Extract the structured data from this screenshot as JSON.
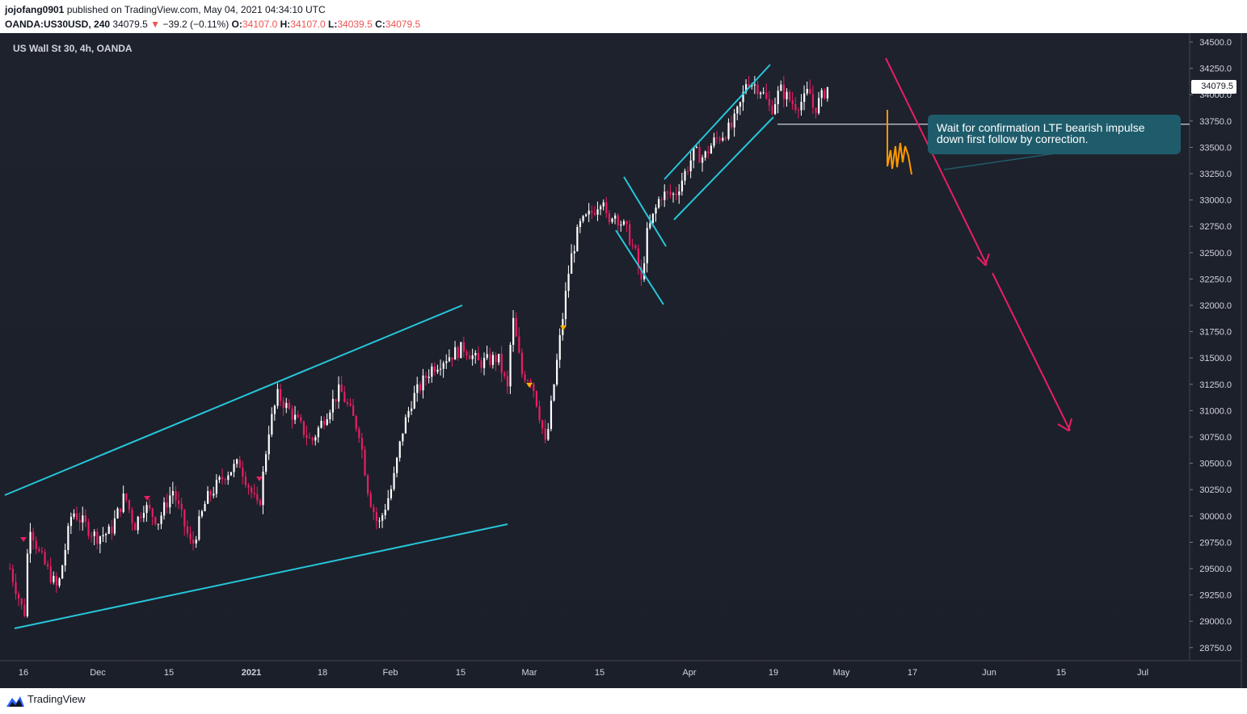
{
  "header": {
    "username": "jojofang0901",
    "published": " published on TradingView.com, May 04, 2021 04:34:10 UTC",
    "symbol": "OANDA:US30USD, 240",
    "last": "34079.5",
    "change": "−39.2 (−0.11%)",
    "o_label": "O:",
    "o_value": "34107.0",
    "h_label": "H:",
    "h_value": "34107.0",
    "l_label": "L:",
    "l_value": "34039.5",
    "c_label": "C:",
    "c_value": "34079.5",
    "down_glyph": "▼"
  },
  "chart_title": "US Wall St 30, 4h, OANDA",
  "price_label": "34079.5",
  "annotation": "Wait for confirmation LTF bearish impulse down first follow by correction.",
  "footer": {
    "brand": "TradingView"
  },
  "colors": {
    "background": "#1e222d",
    "up_candle": "#ffffff",
    "down_candle": "#e91e63",
    "trendline": "#26c6da",
    "projection": "#e91e63",
    "sketch": "#ff9800",
    "callout": "#1f5c6b"
  },
  "chart_data": {
    "type": "candlestick",
    "symbol": "US30USD",
    "timeframe": "4h",
    "y_ticks": [
      34500,
      34250,
      34000,
      33750,
      33500,
      33250,
      33000,
      32750,
      32500,
      32250,
      32000,
      31750,
      31500,
      31250,
      31000,
      30750,
      30500,
      30250,
      30000,
      29750,
      29500,
      29250,
      29000,
      28750
    ],
    "y_tick_labels": [
      "34500.0",
      "34250.0",
      "34000.0",
      "33750.0",
      "33500.0",
      "33250.0",
      "33000.0",
      "32750.0",
      "32500.0",
      "32250.0",
      "32000.0",
      "31750.0",
      "31500.0",
      "31250.0",
      "31000.0",
      "30750.0",
      "30500.0",
      "30250.0",
      "30000.0",
      "29750.0",
      "29500.0",
      "29250.0",
      "29000.0",
      "28750.0"
    ],
    "x_tick_labels": [
      "16",
      "Dec",
      "15",
      "2021",
      "18",
      "Feb",
      "15",
      "Mar",
      "15",
      "Apr",
      "19",
      "May",
      "17",
      "Jun",
      "15",
      "Jul"
    ],
    "x_tick_bold": [
      "2021"
    ],
    "last_price": 34079.5,
    "path_points": [
      [
        "2020-11-13",
        29500
      ],
      [
        "2020-11-16",
        29050
      ],
      [
        "2020-11-17",
        29950
      ],
      [
        "2020-11-19",
        29650
      ],
      [
        "2020-11-23",
        29300
      ],
      [
        "2020-11-26",
        30050
      ],
      [
        "2020-12-01",
        29800
      ],
      [
        "2020-12-04",
        29850
      ],
      [
        "2020-12-07",
        30200
      ],
      [
        "2020-12-09",
        29900
      ],
      [
        "2020-12-11",
        30100
      ],
      [
        "2020-12-14",
        29950
      ],
      [
        "2020-12-17",
        30250
      ],
      [
        "2020-12-21",
        29700
      ],
      [
        "2020-12-24",
        30150
      ],
      [
        "2020-12-28",
        30400
      ],
      [
        "2020-12-31",
        30500
      ],
      [
        "2021-01-04",
        30050
      ],
      [
        "2021-01-06",
        30800
      ],
      [
        "2021-01-08",
        31150
      ],
      [
        "2021-01-12",
        30900
      ],
      [
        "2021-01-15",
        30700
      ],
      [
        "2021-01-19",
        31050
      ],
      [
        "2021-01-21",
        31200
      ],
      [
        "2021-01-25",
        30800
      ],
      [
        "2021-01-27",
        30200
      ],
      [
        "2021-01-29",
        29900
      ],
      [
        "2021-02-01",
        30300
      ],
      [
        "2021-02-03",
        30800
      ],
      [
        "2021-02-05",
        31100
      ],
      [
        "2021-02-09",
        31400
      ],
      [
        "2021-02-12",
        31500
      ],
      [
        "2021-02-16",
        31600
      ],
      [
        "2021-02-19",
        31450
      ],
      [
        "2021-02-23",
        31500
      ],
      [
        "2021-02-25",
        31200
      ],
      [
        "2021-02-26",
        31900
      ],
      [
        "2021-02-28",
        31350
      ],
      [
        "2021-03-02",
        31300
      ],
      [
        "2021-03-04",
        30900
      ],
      [
        "2021-03-05",
        30650
      ],
      [
        "2021-03-08",
        31700
      ],
      [
        "2021-03-10",
        32400
      ],
      [
        "2021-03-12",
        32750
      ],
      [
        "2021-03-15",
        32900
      ],
      [
        "2021-03-17",
        33050
      ],
      [
        "2021-03-18",
        32700
      ],
      [
        "2021-03-19",
        32900
      ],
      [
        "2021-03-22",
        32700
      ],
      [
        "2021-03-24",
        32450
      ],
      [
        "2021-03-25",
        32200
      ],
      [
        "2021-03-26",
        32650
      ],
      [
        "2021-03-29",
        33050
      ],
      [
        "2021-04-01",
        33050
      ],
      [
        "2021-04-05",
        33450
      ],
      [
        "2021-04-07",
        33400
      ],
      [
        "2021-04-09",
        33550
      ],
      [
        "2021-04-13",
        33700
      ],
      [
        "2021-04-15",
        33950
      ],
      [
        "2021-04-16",
        34150
      ],
      [
        "2021-04-19",
        34050
      ],
      [
        "2021-04-21",
        33850
      ],
      [
        "2021-04-23",
        34050
      ],
      [
        "2021-04-26",
        33900
      ],
      [
        "2021-04-28",
        33950
      ],
      [
        "2021-04-29",
        34050
      ],
      [
        "2021-04-30",
        33850
      ],
      [
        "2021-05-03",
        34080
      ]
    ],
    "support_level": 33720,
    "projection_target": 30750
  }
}
